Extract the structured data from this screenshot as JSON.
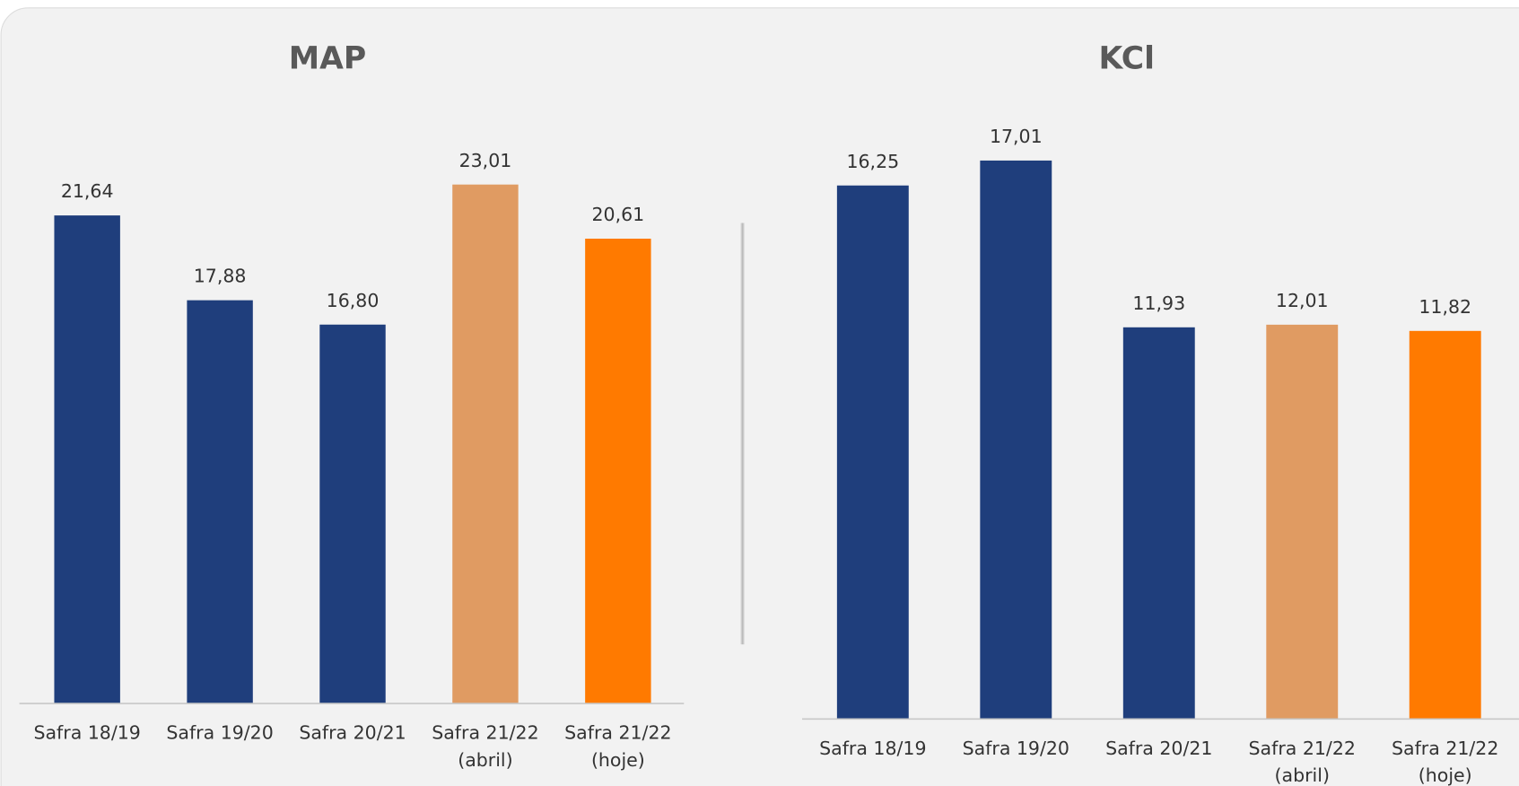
{
  "chart_data": [
    {
      "type": "bar",
      "title": "MAP",
      "categories": [
        "Safra 18/19",
        "Safra 19/20",
        "Safra 20/21",
        "Safra 21/22 (abril)",
        "Safra 21/22 (hoje)"
      ],
      "values": [
        21.64,
        17.88,
        16.8,
        23.01,
        20.61
      ],
      "value_labels": [
        "21,64",
        "17,88",
        "16,80",
        "23,01",
        "20,61"
      ],
      "colors": [
        "#1f3e7c",
        "#1f3e7c",
        "#1f3e7c",
        "#e09b62",
        "#ff7a00"
      ],
      "ylim": [
        0,
        25
      ]
    },
    {
      "type": "bar",
      "title": "KCl",
      "categories": [
        "Safra 18/19",
        "Safra 19/20",
        "Safra 20/21",
        "Safra 21/22 (abril)",
        "Safra 21/22 (hoje)"
      ],
      "values": [
        16.25,
        17.01,
        11.93,
        12.01,
        11.82
      ],
      "value_labels": [
        "16,25",
        "17,01",
        "11,93",
        "12,01",
        "11,82"
      ],
      "colors": [
        "#1f3e7c",
        "#1f3e7c",
        "#1f3e7c",
        "#e09b62",
        "#ff7a00"
      ],
      "ylim": [
        0,
        18
      ]
    }
  ]
}
